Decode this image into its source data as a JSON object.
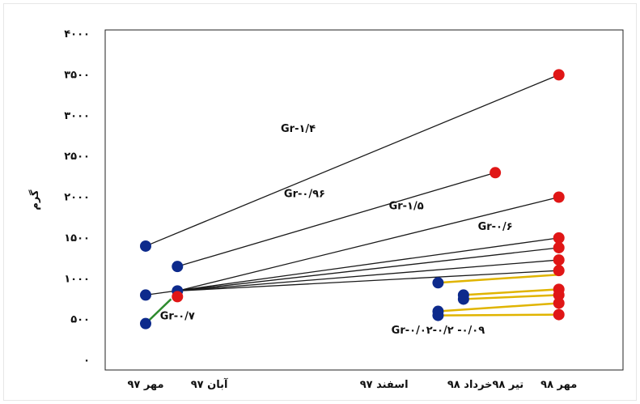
{
  "chart_data": {
    "type": "scatter",
    "title": "",
    "xlabel": "",
    "ylabel": "گرم",
    "ylim": [
      0,
      4000
    ],
    "xlim": [
      0,
      7
    ],
    "grid": false,
    "x_ticks": [
      {
        "x": 0,
        "label": "مهر ۹۷"
      },
      {
        "x": 1,
        "label": "آبان ۹۷"
      },
      {
        "x": 3.75,
        "label": "اسفند ۹۷"
      },
      {
        "x": 5.1,
        "label": "خرداد ۹۸"
      },
      {
        "x": 5.7,
        "label": "تیر ۹۸"
      },
      {
        "x": 6.5,
        "label": "مهر ۹۸"
      }
    ],
    "y_ticks": [
      {
        "y": 0,
        "label": "۰"
      },
      {
        "y": 500,
        "label": "۵۰۰"
      },
      {
        "y": 1000,
        "label": "۱۰۰۰"
      },
      {
        "y": 1500,
        "label": "۱۵۰۰"
      },
      {
        "y": 2000,
        "label": "۲۰۰۰"
      },
      {
        "y": 2500,
        "label": "۲۵۰۰"
      },
      {
        "y": 3000,
        "label": "۳۰۰۰"
      },
      {
        "y": 3500,
        "label": "۳۵۰۰"
      },
      {
        "y": 4000,
        "label": "۴۰۰۰"
      }
    ],
    "series": [
      {
        "color": "#1a1a1a",
        "x": [
          0,
          6.5
        ],
        "y": [
          1400,
          3500
        ]
      },
      {
        "color": "#1a1a1a",
        "x": [
          0.5,
          5.5
        ],
        "y": [
          1150,
          2300
        ]
      },
      {
        "color": "#1a1a1a",
        "x": [
          0.5,
          6.5
        ],
        "y": [
          850,
          2000
        ]
      },
      {
        "color": "#1a1a1a",
        "x": [
          0,
          6.5
        ],
        "y": [
          800,
          1500
        ]
      },
      {
        "color": "#1a1a1a",
        "x": [
          0.5,
          6.5
        ],
        "y": [
          850,
          1380
        ]
      },
      {
        "color": "#1a1a1a",
        "x": [
          0.5,
          6.5
        ],
        "y": [
          850,
          1230
        ]
      },
      {
        "color": "#1a1a1a",
        "x": [
          0.5,
          6.5
        ],
        "y": [
          850,
          1100
        ]
      },
      {
        "color": "#2e8b2e",
        "x": [
          0,
          0.4
        ],
        "y": [
          450,
          750
        ]
      },
      {
        "color": "#e0b400",
        "x": [
          4.6,
          6.5
        ],
        "y": [
          950,
          1050
        ]
      },
      {
        "color": "#e0b400",
        "x": [
          5.0,
          6.5
        ],
        "y": [
          800,
          870
        ]
      },
      {
        "color": "#e0b400",
        "x": [
          5.0,
          6.5
        ],
        "y": [
          750,
          800
        ]
      },
      {
        "color": "#e0b400",
        "x": [
          4.6,
          6.5
        ],
        "y": [
          600,
          700
        ]
      },
      {
        "color": "#e0b400",
        "x": [
          4.6,
          6.5
        ],
        "y": [
          550,
          560
        ]
      }
    ],
    "points_blue": [
      {
        "x": 0,
        "y": 1400
      },
      {
        "x": 0.5,
        "y": 1150
      },
      {
        "x": 0,
        "y": 800
      },
      {
        "x": 0.5,
        "y": 850
      },
      {
        "x": 0,
        "y": 450
      },
      {
        "x": 4.6,
        "y": 950
      },
      {
        "x": 5.0,
        "y": 800
      },
      {
        "x": 5.0,
        "y": 750
      },
      {
        "x": 4.6,
        "y": 600
      },
      {
        "x": 4.6,
        "y": 550
      }
    ],
    "points_red": [
      {
        "x": 6.5,
        "y": 3500
      },
      {
        "x": 5.5,
        "y": 2300
      },
      {
        "x": 6.5,
        "y": 2000
      },
      {
        "x": 6.5,
        "y": 1500
      },
      {
        "x": 6.5,
        "y": 1380
      },
      {
        "x": 6.5,
        "y": 1230
      },
      {
        "x": 6.5,
        "y": 1100
      },
      {
        "x": 6.5,
        "y": 870
      },
      {
        "x": 6.5,
        "y": 800
      },
      {
        "x": 6.5,
        "y": 700
      },
      {
        "x": 6.5,
        "y": 560
      },
      {
        "x": 0.5,
        "y": 780
      }
    ],
    "annotations": [
      {
        "text": "Gr-۱/۴",
        "x": 2.4,
        "y": 2800
      },
      {
        "text": "Gr-۰/۹۶",
        "x": 2.5,
        "y": 2000
      },
      {
        "text": "Gr-۱/۵",
        "x": 4.1,
        "y": 1850
      },
      {
        "text": "Gr-۰/۶",
        "x": 5.5,
        "y": 1600
      },
      {
        "text": "Gr-۰/۷",
        "x": 0.5,
        "y": 500
      },
      {
        "text": "Gr-۰/۰۲-۰/۲ -۰/۰۹",
        "x": 4.6,
        "y": 330
      }
    ],
    "colors": {
      "blue_point": "#0d2a8c",
      "red_point": "#e01616",
      "axis": "#222222"
    }
  }
}
